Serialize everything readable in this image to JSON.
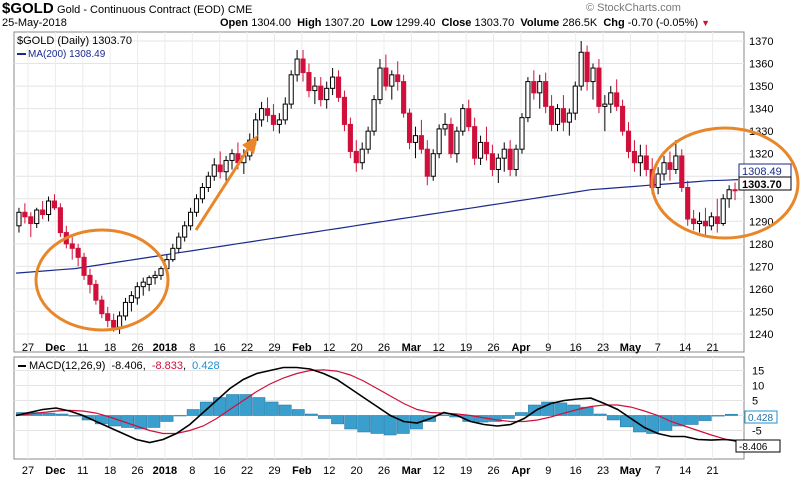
{
  "header": {
    "symbol": "$GOLD",
    "name": "Gold - Continuous Contract (EOD)",
    "exchange": "CME",
    "date": "25-May-2018",
    "open_label": "Open",
    "open": "1304.00",
    "high_label": "High",
    "high": "1307.20",
    "low_label": "Low",
    "low": "1299.40",
    "close_label": "Close",
    "close": "1303.70",
    "volume_label": "Volume",
    "volume": "286.5K",
    "chg_label": "Chg",
    "chg": "-0.70 (-0.05%)",
    "watermark": "© StockCharts.com"
  },
  "chart_data": [
    {
      "type": "candlestick",
      "legend": [
        "$GOLD (Daily) 1303.70",
        "MA(200) 1308.49"
      ],
      "ylim": [
        1232,
        1374
      ],
      "yticks": [
        1240,
        1250,
        1260,
        1270,
        1280,
        1290,
        1300,
        1310,
        1320,
        1330,
        1340,
        1350,
        1360,
        1370
      ],
      "ytick_labels": [
        "1240",
        "1250",
        "1260",
        "1270",
        "1280",
        "1290",
        "1300",
        "1310",
        "1320",
        "1330",
        "1340",
        "1350",
        "1360",
        "1370"
      ],
      "price_tags": [
        "1308.49",
        "1303.70"
      ],
      "colors": {
        "up": "#000000",
        "down": "#d0103a",
        "ma": "#1a2a8c",
        "annotation": "#e8862a"
      },
      "candles_ohlc": [
        [
          1288,
          1296,
          1285,
          1294
        ],
        [
          1294,
          1298,
          1289,
          1292
        ],
        [
          1292,
          1294,
          1283,
          1289
        ],
        [
          1289,
          1296,
          1287,
          1295
        ],
        [
          1295,
          1299,
          1291,
          1293
        ],
        [
          1293,
          1301,
          1290,
          1299
        ],
        [
          1299,
          1302,
          1295,
          1296
        ],
        [
          1296,
          1298,
          1283,
          1285
        ],
        [
          1285,
          1288,
          1278,
          1280
        ],
        [
          1280,
          1283,
          1273,
          1278
        ],
        [
          1278,
          1280,
          1270,
          1274
        ],
        [
          1274,
          1276,
          1264,
          1266
        ],
        [
          1266,
          1269,
          1258,
          1262
        ],
        [
          1262,
          1264,
          1253,
          1255
        ],
        [
          1255,
          1257,
          1247,
          1249
        ],
        [
          1249,
          1252,
          1243,
          1246
        ],
        [
          1246,
          1249,
          1241,
          1243
        ],
        [
          1243,
          1250,
          1240,
          1248
        ],
        [
          1248,
          1256,
          1246,
          1254
        ],
        [
          1254,
          1259,
          1250,
          1257
        ],
        [
          1256,
          1263,
          1253,
          1261
        ],
        [
          1261,
          1265,
          1257,
          1263
        ],
        [
          1262,
          1266,
          1259,
          1265
        ],
        [
          1265,
          1268,
          1262,
          1266
        ],
        [
          1266,
          1270,
          1264,
          1269
        ],
        [
          1269,
          1275,
          1267,
          1273
        ],
        [
          1273,
          1280,
          1272,
          1278
        ],
        [
          1278,
          1285,
          1276,
          1283
        ],
        [
          1283,
          1290,
          1281,
          1288
        ],
        [
          1288,
          1296,
          1286,
          1294
        ],
        [
          1294,
          1302,
          1292,
          1300
        ],
        [
          1300,
          1307,
          1298,
          1305
        ],
        [
          1305,
          1312,
          1303,
          1310
        ],
        [
          1310,
          1318,
          1308,
          1315
        ],
        [
          1315,
          1321,
          1309,
          1312
        ],
        [
          1312,
          1319,
          1308,
          1317
        ],
        [
          1317,
          1322,
          1313,
          1320
        ],
        [
          1320,
          1325,
          1313,
          1316
        ],
        [
          1316,
          1322,
          1311,
          1319
        ],
        [
          1319,
          1329,
          1317,
          1326
        ],
        [
          1326,
          1338,
          1324,
          1335
        ],
        [
          1335,
          1343,
          1332,
          1340
        ],
        [
          1340,
          1345,
          1334,
          1337
        ],
        [
          1337,
          1342,
          1330,
          1333
        ],
        [
          1333,
          1338,
          1329,
          1335
        ],
        [
          1335,
          1345,
          1333,
          1342
        ],
        [
          1342,
          1357,
          1340,
          1355
        ],
        [
          1355,
          1366,
          1352,
          1362
        ],
        [
          1362,
          1366,
          1352,
          1356
        ],
        [
          1356,
          1360,
          1345,
          1348
        ],
        [
          1348,
          1354,
          1342,
          1350
        ],
        [
          1350,
          1354,
          1341,
          1344
        ],
        [
          1344,
          1352,
          1340,
          1349
        ],
        [
          1349,
          1358,
          1346,
          1354
        ],
        [
          1354,
          1357,
          1343,
          1345
        ],
        [
          1345,
          1348,
          1330,
          1333
        ],
        [
          1333,
          1336,
          1318,
          1321
        ],
        [
          1321,
          1326,
          1312,
          1316
        ],
        [
          1316,
          1325,
          1313,
          1322
        ],
        [
          1322,
          1332,
          1320,
          1330
        ],
        [
          1330,
          1346,
          1328,
          1344
        ],
        [
          1344,
          1362,
          1342,
          1358
        ],
        [
          1358,
          1364,
          1348,
          1350
        ],
        [
          1350,
          1357,
          1344,
          1355
        ],
        [
          1355,
          1361,
          1348,
          1352
        ],
        [
          1352,
          1355,
          1336,
          1338
        ],
        [
          1338,
          1340,
          1322,
          1325
        ],
        [
          1325,
          1332,
          1318,
          1328
        ],
        [
          1328,
          1335,
          1320,
          1322
        ],
        [
          1322,
          1326,
          1306,
          1310
        ],
        [
          1310,
          1322,
          1308,
          1320
        ],
        [
          1320,
          1333,
          1318,
          1331
        ],
        [
          1331,
          1338,
          1328,
          1333
        ],
        [
          1333,
          1336,
          1318,
          1320
        ],
        [
          1320,
          1332,
          1316,
          1330
        ],
        [
          1330,
          1342,
          1328,
          1340
        ],
        [
          1340,
          1344,
          1330,
          1332
        ],
        [
          1332,
          1336,
          1315,
          1318
        ],
        [
          1318,
          1328,
          1315,
          1325
        ],
        [
          1325,
          1332,
          1317,
          1320
        ],
        [
          1320,
          1324,
          1310,
          1313
        ],
        [
          1313,
          1320,
          1307,
          1318
        ],
        [
          1318,
          1325,
          1312,
          1322
        ],
        [
          1322,
          1326,
          1310,
          1313
        ],
        [
          1313,
          1324,
          1310,
          1322
        ],
        [
          1322,
          1338,
          1320,
          1336
        ],
        [
          1336,
          1354,
          1334,
          1352
        ],
        [
          1352,
          1357,
          1344,
          1347
        ],
        [
          1347,
          1355,
          1340,
          1352
        ],
        [
          1352,
          1356,
          1338,
          1341
        ],
        [
          1341,
          1346,
          1330,
          1333
        ],
        [
          1333,
          1342,
          1330,
          1340
        ],
        [
          1340,
          1346,
          1330,
          1334
        ],
        [
          1334,
          1340,
          1328,
          1338
        ],
        [
          1338,
          1352,
          1335,
          1350
        ],
        [
          1350,
          1370,
          1348,
          1365
        ],
        [
          1365,
          1368,
          1348,
          1352
        ],
        [
          1352,
          1360,
          1344,
          1358
        ],
        [
          1358,
          1362,
          1338,
          1341
        ],
        [
          1341,
          1346,
          1330,
          1342
        ],
        [
          1342,
          1350,
          1338,
          1347
        ],
        [
          1347,
          1353,
          1339,
          1341
        ],
        [
          1341,
          1344,
          1328,
          1330
        ],
        [
          1330,
          1334,
          1318,
          1321
        ],
        [
          1321,
          1326,
          1312,
          1316
        ],
        [
          1316,
          1324,
          1310,
          1319
        ],
        [
          1319,
          1324,
          1310,
          1313
        ],
        [
          1313,
          1318,
          1302,
          1305
        ],
        [
          1305,
          1314,
          1302,
          1311
        ],
        [
          1311,
          1319,
          1308,
          1316
        ],
        [
          1316,
          1321,
          1308,
          1313
        ],
        [
          1313,
          1326,
          1311,
          1319
        ],
        [
          1319,
          1322,
          1303,
          1305
        ],
        [
          1305,
          1308,
          1288,
          1291
        ],
        [
          1291,
          1295,
          1286,
          1289
        ],
        [
          1289,
          1294,
          1285,
          1290
        ],
        [
          1290,
          1296,
          1284,
          1288
        ],
        [
          1288,
          1294,
          1286,
          1292
        ],
        [
          1292,
          1300,
          1285,
          1289
        ],
        [
          1289,
          1302,
          1288,
          1300
        ],
        [
          1300,
          1306,
          1296,
          1304
        ],
        [
          1304,
          1307.2,
          1299.4,
          1303.7
        ]
      ],
      "ma200": [
        1267,
        1267.5,
        1268,
        1268.5,
        1269,
        1270,
        1271,
        1272,
        1273,
        1274,
        1275,
        1276,
        1277,
        1278,
        1279,
        1280,
        1281,
        1282,
        1283,
        1284,
        1285,
        1286,
        1287,
        1288,
        1289,
        1290,
        1291,
        1292,
        1293,
        1294,
        1295,
        1296,
        1297,
        1298,
        1299,
        1300,
        1301,
        1302,
        1303,
        1304,
        1304.5,
        1305,
        1305.5,
        1306,
        1306.5,
        1307,
        1307.5,
        1308,
        1308.2,
        1308.49
      ],
      "annotations": [
        "circle",
        "arrow",
        "circle"
      ]
    },
    {
      "type": "bar+line",
      "legend_label": "MACD(12,26,9)",
      "legend_values": [
        "-8.406",
        "-8.833",
        "0.428"
      ],
      "legend_colors": [
        "#000000",
        "#d0103a",
        "#1f8fd0"
      ],
      "ylim": [
        -14.5,
        19.5
      ],
      "yticks": [
        15,
        10,
        5,
        0,
        -5
      ],
      "ytick_labels": [
        "15",
        "10",
        "5",
        "",
        "-5"
      ],
      "value_tags": [
        "0.428",
        "-8.406"
      ],
      "macd": [
        0,
        1,
        2,
        2.5,
        1.5,
        0,
        -2,
        -4,
        -6,
        -8,
        -9,
        -8,
        -6,
        -3,
        1,
        5,
        9,
        12,
        14,
        15,
        16,
        16,
        15.5,
        14,
        12,
        9,
        6,
        3,
        0,
        -2,
        -2.5,
        -1,
        1,
        0,
        -2,
        -3,
        -3.5,
        -3,
        -1,
        2,
        4,
        5,
        5.5,
        5.8,
        4,
        2,
        -1,
        -4,
        -6,
        -7,
        -7,
        -8,
        -8.2,
        -8,
        -8.4
      ],
      "signal": [
        0,
        0.5,
        1,
        1.5,
        1.7,
        1.5,
        0.8,
        -0.5,
        -2,
        -3.5,
        -5,
        -6,
        -6,
        -5,
        -3.5,
        -1,
        2,
        5,
        8,
        10.5,
        12.5,
        14,
        15,
        15.2,
        14.8,
        13.5,
        11.5,
        9,
        6.5,
        4,
        2,
        1,
        0.8,
        0.5,
        0,
        -0.8,
        -1.5,
        -2,
        -2,
        -1.5,
        -0.5,
        0.8,
        2,
        3,
        3.5,
        3.5,
        2.8,
        1.5,
        0,
        -2,
        -3.5,
        -5,
        -6.5,
        -7.8,
        -8.8
      ],
      "histogram": [
        1,
        1,
        0.8,
        0.5,
        -0.2,
        -1.5,
        -2.8,
        -3.5,
        -4,
        -4.5,
        -4,
        -2,
        0,
        2,
        4.5,
        6,
        7,
        7,
        6,
        4.5,
        3.5,
        2,
        0.5,
        -1,
        -2.8,
        -4.5,
        -5.5,
        -6,
        -6.5,
        -6,
        -4.5,
        -2,
        0.2,
        -0.5,
        -2,
        -2.2,
        -2,
        -1,
        1,
        3.5,
        4.5,
        4.2,
        3.5,
        2.8,
        0.5,
        -1.5,
        -3.8,
        -5.5,
        -6,
        -5,
        -3.5,
        -3,
        -1.7,
        -0.2,
        0.428
      ]
    }
  ],
  "xaxis": {
    "labels": [
      {
        "t": "27",
        "b": false
      },
      {
        "t": "Dec",
        "b": true
      },
      {
        "t": "11",
        "b": false
      },
      {
        "t": "18",
        "b": false
      },
      {
        "t": "26",
        "b": false
      },
      {
        "t": "2018",
        "b": true
      },
      {
        "t": "8",
        "b": false
      },
      {
        "t": "16",
        "b": false
      },
      {
        "t": "22",
        "b": false
      },
      {
        "t": "29",
        "b": false
      },
      {
        "t": "Feb",
        "b": true
      },
      {
        "t": "12",
        "b": false
      },
      {
        "t": "20",
        "b": false
      },
      {
        "t": "26",
        "b": false
      },
      {
        "t": "Mar",
        "b": true
      },
      {
        "t": "12",
        "b": false
      },
      {
        "t": "19",
        "b": false
      },
      {
        "t": "26",
        "b": false
      },
      {
        "t": "Apr",
        "b": true
      },
      {
        "t": "9",
        "b": false
      },
      {
        "t": "16",
        "b": false
      },
      {
        "t": "23",
        "b": false
      },
      {
        "t": "May",
        "b": true
      },
      {
        "t": "7",
        "b": false
      },
      {
        "t": "14",
        "b": false
      },
      {
        "t": "21",
        "b": false
      }
    ]
  }
}
